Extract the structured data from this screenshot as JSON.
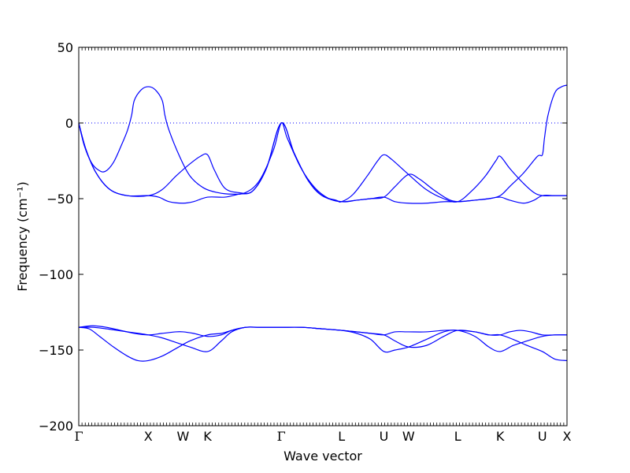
{
  "chart_data": {
    "type": "line",
    "title": "",
    "xlabel": "Wave vector",
    "ylabel": "Frequency (cm⁻¹)",
    "ylim": [
      -200,
      50
    ],
    "y_ticks": [
      50,
      0,
      -50,
      -100,
      -150,
      -200
    ],
    "y_tick_labels": [
      "50",
      "0",
      "−50",
      "−100",
      "−150",
      "−200"
    ],
    "reference_line": {
      "y": 0,
      "style": "dotted"
    },
    "line_color": "#0000ff",
    "high_symmetry_points": [
      {
        "label": "Γ",
        "pos": 0
      },
      {
        "label": "X",
        "pos": 1.0
      },
      {
        "label": "W",
        "pos": 1.5
      },
      {
        "label": "K",
        "pos": 1.853
      },
      {
        "label": "Γ",
        "pos": 2.914
      },
      {
        "label": "L",
        "pos": 3.78
      },
      {
        "label": "U",
        "pos": 4.39
      },
      {
        "label": "W",
        "pos": 4.744
      },
      {
        "label": "L",
        "pos": 5.451
      },
      {
        "label": "K",
        "pos": 6.063
      },
      {
        "label": "U",
        "pos": 6.67
      },
      {
        "label": "X",
        "pos": 7.024
      }
    ],
    "series": [
      {
        "values": [
          [
            0,
            0
          ],
          [
            0.08,
            -15
          ],
          [
            0.18,
            -26
          ],
          [
            0.28,
            -31
          ],
          [
            0.38,
            -32
          ],
          [
            0.5,
            -26
          ],
          [
            0.62,
            -14
          ],
          [
            0.7,
            -5
          ],
          [
            0.76,
            5
          ],
          [
            0.8,
            15
          ],
          [
            0.9,
            22
          ],
          [
            1.0,
            24
          ],
          [
            1.1,
            22
          ],
          [
            1.2,
            15
          ],
          [
            1.24,
            5
          ],
          [
            1.3,
            -5
          ],
          [
            1.45,
            -22
          ],
          [
            1.6,
            -35
          ],
          [
            1.8,
            -43
          ],
          [
            2.0,
            -46
          ],
          [
            2.2,
            -47
          ],
          [
            2.4,
            -46
          ],
          [
            2.6,
            -38
          ],
          [
            2.8,
            -18
          ],
          [
            2.914,
            0
          ],
          [
            3.0,
            -10
          ],
          [
            3.2,
            -30
          ],
          [
            3.4,
            -43
          ],
          [
            3.6,
            -50
          ],
          [
            3.78,
            -52
          ],
          [
            4.0,
            -51
          ],
          [
            4.2,
            -50
          ],
          [
            4.39,
            -49
          ],
          [
            4.55,
            -42
          ],
          [
            4.744,
            -34
          ],
          [
            4.9,
            -37
          ],
          [
            5.1,
            -44
          ],
          [
            5.3,
            -50
          ],
          [
            5.451,
            -52
          ],
          [
            5.7,
            -51
          ],
          [
            5.9,
            -50
          ],
          [
            6.063,
            -48
          ],
          [
            6.2,
            -42
          ],
          [
            6.4,
            -33
          ],
          [
            6.6,
            -22
          ],
          [
            6.67,
            -21
          ],
          [
            6.7,
            -10
          ],
          [
            6.75,
            5
          ],
          [
            6.85,
            20
          ],
          [
            6.95,
            24
          ],
          [
            7.024,
            25
          ]
        ]
      },
      {
        "values": [
          [
            0,
            0
          ],
          [
            0.1,
            -17
          ],
          [
            0.25,
            -33
          ],
          [
            0.45,
            -44
          ],
          [
            0.7,
            -48
          ],
          [
            1.0,
            -48
          ],
          [
            1.2,
            -44
          ],
          [
            1.4,
            -35
          ],
          [
            1.6,
            -27
          ],
          [
            1.75,
            -22
          ],
          [
            1.853,
            -21
          ],
          [
            1.95,
            -31
          ],
          [
            2.1,
            -43
          ],
          [
            2.3,
            -46
          ],
          [
            2.5,
            -45
          ],
          [
            2.7,
            -30
          ],
          [
            2.914,
            0
          ],
          [
            3.1,
            -20
          ],
          [
            3.3,
            -38
          ],
          [
            3.5,
            -48
          ],
          [
            3.7,
            -51
          ],
          [
            3.78,
            -52
          ],
          [
            3.95,
            -47
          ],
          [
            4.15,
            -35
          ],
          [
            4.3,
            -25
          ],
          [
            4.39,
            -21
          ],
          [
            4.5,
            -24
          ],
          [
            4.744,
            -34
          ],
          [
            5.0,
            -44
          ],
          [
            5.25,
            -50
          ],
          [
            5.451,
            -52
          ],
          [
            5.65,
            -45
          ],
          [
            5.85,
            -35
          ],
          [
            6.0,
            -25
          ],
          [
            6.063,
            -22
          ],
          [
            6.2,
            -30
          ],
          [
            6.4,
            -40
          ],
          [
            6.55,
            -46
          ],
          [
            6.67,
            -48
          ],
          [
            6.85,
            -48
          ],
          [
            7.024,
            -48
          ]
        ]
      },
      {
        "values": [
          [
            0,
            0
          ],
          [
            0.1,
            -17
          ],
          [
            0.25,
            -33
          ],
          [
            0.45,
            -44
          ],
          [
            0.7,
            -48
          ],
          [
            1.0,
            -48
          ],
          [
            1.15,
            -49
          ],
          [
            1.3,
            -52
          ],
          [
            1.5,
            -53
          ],
          [
            1.65,
            -52
          ],
          [
            1.853,
            -49
          ],
          [
            2.1,
            -49
          ],
          [
            2.3,
            -47
          ],
          [
            2.5,
            -45
          ],
          [
            2.7,
            -30
          ],
          [
            2.914,
            0
          ],
          [
            3.1,
            -20
          ],
          [
            3.3,
            -38
          ],
          [
            3.5,
            -48
          ],
          [
            3.78,
            -52
          ],
          [
            4.0,
            -51
          ],
          [
            4.2,
            -50
          ],
          [
            4.39,
            -49
          ],
          [
            4.55,
            -52
          ],
          [
            4.744,
            -53
          ],
          [
            5.0,
            -53
          ],
          [
            5.25,
            -52
          ],
          [
            5.451,
            -52
          ],
          [
            5.7,
            -51
          ],
          [
            5.9,
            -50
          ],
          [
            6.063,
            -49
          ],
          [
            6.2,
            -51
          ],
          [
            6.4,
            -53
          ],
          [
            6.55,
            -51
          ],
          [
            6.67,
            -48
          ],
          [
            6.85,
            -48
          ],
          [
            7.024,
            -48
          ]
        ]
      },
      {
        "values": [
          [
            0,
            -135
          ],
          [
            0.2,
            -134
          ],
          [
            0.4,
            -135
          ],
          [
            0.6,
            -137
          ],
          [
            0.8,
            -139
          ],
          [
            1.0,
            -140
          ],
          [
            1.2,
            -139
          ],
          [
            1.4,
            -138
          ],
          [
            1.5,
            -138
          ],
          [
            1.65,
            -139
          ],
          [
            1.853,
            -141
          ],
          [
            2.05,
            -140
          ],
          [
            2.2,
            -137
          ],
          [
            2.4,
            -135
          ],
          [
            2.6,
            -135
          ],
          [
            2.914,
            -135
          ],
          [
            3.2,
            -135
          ],
          [
            3.5,
            -136
          ],
          [
            3.78,
            -137
          ],
          [
            4.0,
            -138
          ],
          [
            4.2,
            -139
          ],
          [
            4.39,
            -140
          ],
          [
            4.55,
            -138
          ],
          [
            4.744,
            -138
          ],
          [
            5.0,
            -138
          ],
          [
            5.25,
            -137
          ],
          [
            5.451,
            -137
          ],
          [
            5.7,
            -138
          ],
          [
            5.9,
            -140
          ],
          [
            6.063,
            -140
          ],
          [
            6.2,
            -138
          ],
          [
            6.35,
            -137
          ],
          [
            6.5,
            -138
          ],
          [
            6.67,
            -140
          ],
          [
            6.85,
            -140
          ],
          [
            7.024,
            -140
          ]
        ]
      },
      {
        "values": [
          [
            0,
            -135
          ],
          [
            0.2,
            -135
          ],
          [
            0.4,
            -136
          ],
          [
            0.7,
            -138
          ],
          [
            1.0,
            -140
          ],
          [
            1.2,
            -142
          ],
          [
            1.4,
            -145
          ],
          [
            1.6,
            -148
          ],
          [
            1.853,
            -151
          ],
          [
            2.05,
            -144
          ],
          [
            2.2,
            -138
          ],
          [
            2.4,
            -135
          ],
          [
            2.6,
            -135
          ],
          [
            2.914,
            -135
          ],
          [
            3.2,
            -135
          ],
          [
            3.5,
            -136
          ],
          [
            3.78,
            -137
          ],
          [
            4.0,
            -139
          ],
          [
            4.2,
            -143
          ],
          [
            4.39,
            -151
          ],
          [
            4.55,
            -150
          ],
          [
            4.744,
            -148
          ],
          [
            5.0,
            -143
          ],
          [
            5.25,
            -138
          ],
          [
            5.451,
            -137
          ],
          [
            5.7,
            -141
          ],
          [
            5.9,
            -148
          ],
          [
            6.063,
            -151
          ],
          [
            6.25,
            -147
          ],
          [
            6.45,
            -144
          ],
          [
            6.67,
            -141
          ],
          [
            6.85,
            -140
          ],
          [
            7.024,
            -140
          ]
        ]
      },
      {
        "values": [
          [
            0,
            -135
          ],
          [
            0.15,
            -136
          ],
          [
            0.3,
            -141
          ],
          [
            0.5,
            -148
          ],
          [
            0.7,
            -154
          ],
          [
            0.85,
            -157
          ],
          [
            1.0,
            -157
          ],
          [
            1.2,
            -154
          ],
          [
            1.4,
            -149
          ],
          [
            1.6,
            -144
          ],
          [
            1.853,
            -140
          ],
          [
            2.05,
            -139
          ],
          [
            2.2,
            -137
          ],
          [
            2.4,
            -135
          ],
          [
            2.6,
            -135
          ],
          [
            2.914,
            -135
          ],
          [
            3.2,
            -135
          ],
          [
            3.5,
            -136
          ],
          [
            3.78,
            -137
          ],
          [
            4.0,
            -138
          ],
          [
            4.2,
            -139
          ],
          [
            4.39,
            -140
          ],
          [
            4.55,
            -144
          ],
          [
            4.744,
            -148
          ],
          [
            5.0,
            -147
          ],
          [
            5.25,
            -141
          ],
          [
            5.451,
            -137
          ],
          [
            5.7,
            -138
          ],
          [
            5.9,
            -140
          ],
          [
            6.063,
            -140
          ],
          [
            6.25,
            -143
          ],
          [
            6.45,
            -147
          ],
          [
            6.67,
            -151
          ],
          [
            6.85,
            -156
          ],
          [
            7.024,
            -157
          ]
        ]
      }
    ]
  }
}
